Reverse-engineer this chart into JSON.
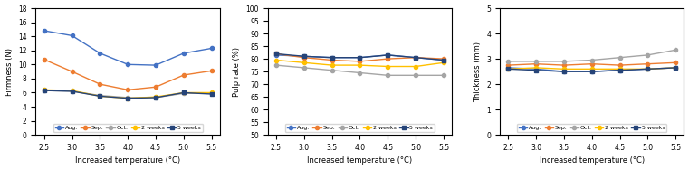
{
  "x": [
    2.5,
    3,
    3.5,
    4,
    4.5,
    5,
    5.5
  ],
  "firmness": {
    "Aug": [
      14.8,
      14.1,
      11.6,
      10.0,
      9.9,
      11.6,
      12.3
    ],
    "Sep": [
      10.7,
      9.0,
      7.2,
      6.4,
      6.8,
      8.5,
      9.1
    ],
    "Oct": [
      6.3,
      6.2,
      5.6,
      5.3,
      5.3,
      5.9,
      5.9
    ],
    "2weeks": [
      6.4,
      6.3,
      5.5,
      5.2,
      5.4,
      6.0,
      6.0
    ],
    "5weeks": [
      6.3,
      6.2,
      5.5,
      5.2,
      5.3,
      6.0,
      5.8
    ]
  },
  "pulp_rate": {
    "Aug": [
      81.5,
      81.0,
      80.5,
      80.5,
      81.5,
      80.5,
      79.5
    ],
    "Sep": [
      82.0,
      80.5,
      79.5,
      79.0,
      80.0,
      80.5,
      80.0
    ],
    "Oct": [
      77.5,
      76.5,
      75.5,
      74.5,
      73.5,
      73.5,
      73.5
    ],
    "2weeks": [
      79.5,
      78.5,
      77.5,
      77.5,
      77.0,
      77.0,
      78.5
    ],
    "5weeks": [
      82.0,
      81.0,
      80.5,
      80.5,
      81.5,
      80.5,
      79.5
    ]
  },
  "thickness": {
    "Aug": [
      2.65,
      2.6,
      2.5,
      2.5,
      2.55,
      2.6,
      2.65
    ],
    "Sep": [
      2.75,
      2.8,
      2.75,
      2.8,
      2.75,
      2.8,
      2.85
    ],
    "Oct": [
      2.9,
      2.9,
      2.9,
      2.95,
      3.05,
      3.15,
      3.35
    ],
    "2weeks": [
      2.6,
      2.65,
      2.6,
      2.6,
      2.6,
      2.6,
      2.65
    ],
    "5weeks": [
      2.6,
      2.55,
      2.5,
      2.5,
      2.55,
      2.6,
      2.65
    ]
  },
  "colors": {
    "Aug": "#4472c4",
    "Sep": "#ed7d31",
    "Oct": "#a5a5a5",
    "2weeks": "#ffc000",
    "5weeks": "#4472c4"
  },
  "markers": {
    "Aug": "o",
    "Sep": "o",
    "Oct": "o",
    "2weeks": "o",
    "5weeks": "s"
  },
  "legend_labels": [
    "Aug.",
    "Sep.",
    "Oct.",
    "2 weeks",
    "5 weeks"
  ],
  "firmness_ylabel": "Firmness (N)",
  "firmness_ylim": [
    0,
    18
  ],
  "firmness_yticks": [
    0,
    2,
    4,
    6,
    8,
    10,
    12,
    14,
    16,
    18
  ],
  "pulp_ylabel": "Pulp rate (%)",
  "pulp_ylim": [
    50,
    100
  ],
  "pulp_yticks": [
    50,
    55,
    60,
    65,
    70,
    75,
    80,
    85,
    90,
    95,
    100
  ],
  "thickness_ylabel": "Thickness (mm)",
  "thickness_ylim": [
    0,
    5
  ],
  "thickness_yticks": [
    0,
    1,
    2,
    3,
    4,
    5
  ],
  "xlabel": "Increased temperature (°C)",
  "xticks": [
    2.5,
    3,
    3.5,
    4,
    4.5,
    5,
    5.5
  ],
  "line_colors": {
    "Aug": "#4472c4",
    "Sep": "#ed7d31",
    "Oct": "#a5a5a5",
    "2weeks": "#ffc000",
    "5weeks": "#264478"
  }
}
